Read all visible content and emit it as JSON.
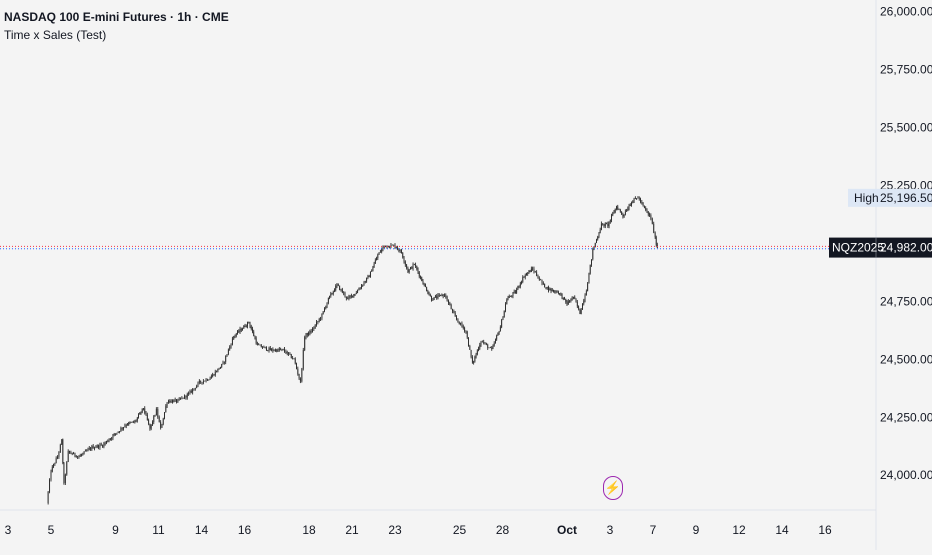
{
  "header": {
    "title": "NASDAQ 100 E-mini Futures · 1h · CME",
    "indicator": "Time x Sales (Test)"
  },
  "colors": {
    "background": "#f4f4f4",
    "candle": "#2b2b2b",
    "price_line_red": "#f23645",
    "price_line_blue": "#2962ff",
    "high_label_bg": "#dde7f5",
    "symbol_label_bg": "#131722",
    "axis_text": "#131722",
    "flash_icon": "#9c27b0"
  },
  "price_tag": {
    "symbol": "NQZ2025",
    "price": "24,982.00"
  },
  "high_tag": {
    "label": "High",
    "price": "25,196.50"
  },
  "icons": {
    "flash": "lightning-bolt-icon"
  },
  "chart_data": {
    "type": "candlestick",
    "title": "NASDAQ 100 E-mini Futures · 1h · CME",
    "ylim": [
      23850,
      26050
    ],
    "yticks": [
      24000,
      24250,
      24500,
      24750,
      25000,
      25250,
      25500,
      25750,
      26000
    ],
    "ytick_labels": [
      "24,000.00",
      "24,250.00",
      "24,500.00",
      "24,750.00",
      "25,000.00",
      "25,250.00",
      "25,500.00",
      "25,750.00",
      "26,000.00"
    ],
    "xticks": [
      {
        "label": "3",
        "day": 0,
        "bold": false
      },
      {
        "label": "5",
        "day": 2,
        "bold": false
      },
      {
        "label": "9",
        "day": 5,
        "bold": false
      },
      {
        "label": "11",
        "day": 7,
        "bold": false
      },
      {
        "label": "14",
        "day": 9,
        "bold": false
      },
      {
        "label": "16",
        "day": 11,
        "bold": false
      },
      {
        "label": "18",
        "day": 14,
        "bold": false
      },
      {
        "label": "21",
        "day": 16,
        "bold": false
      },
      {
        "label": "23",
        "day": 18,
        "bold": false
      },
      {
        "label": "25",
        "day": 21,
        "bold": false
      },
      {
        "label": "28",
        "day": 23,
        "bold": false
      },
      {
        "label": "Oct",
        "day": 26,
        "bold": true
      },
      {
        "label": "3",
        "day": 28,
        "bold": false
      },
      {
        "label": "7",
        "day": 30,
        "bold": false
      },
      {
        "label": "9",
        "day": 32,
        "bold": false
      },
      {
        "label": "12",
        "day": 34,
        "bold": false
      },
      {
        "label": "14",
        "day": 36,
        "bold": false
      },
      {
        "label": "16",
        "day": 38,
        "bold": false
      }
    ],
    "last_price": 24982,
    "session_high": 25196.5,
    "price_path": [
      [
        1.8,
        23880
      ],
      [
        2.0,
        24020
      ],
      [
        2.3,
        24080
      ],
      [
        2.5,
        24150
      ],
      [
        2.6,
        23960
      ],
      [
        2.8,
        24100
      ],
      [
        3.3,
        24080
      ],
      [
        3.9,
        24120
      ],
      [
        4.4,
        24130
      ],
      [
        5.0,
        24180
      ],
      [
        5.5,
        24220
      ],
      [
        5.9,
        24230
      ],
      [
        6.3,
        24290
      ],
      [
        6.6,
        24200
      ],
      [
        6.9,
        24280
      ],
      [
        7.1,
        24200
      ],
      [
        7.4,
        24320
      ],
      [
        7.9,
        24320
      ],
      [
        8.4,
        24350
      ],
      [
        8.9,
        24400
      ],
      [
        9.4,
        24420
      ],
      [
        10.0,
        24480
      ],
      [
        10.5,
        24600
      ],
      [
        11.2,
        24660
      ],
      [
        11.6,
        24560
      ],
      [
        12.2,
        24540
      ],
      [
        12.8,
        24540
      ],
      [
        13.3,
        24500
      ],
      [
        13.6,
        24400
      ],
      [
        13.8,
        24600
      ],
      [
        14.1,
        24620
      ],
      [
        14.6,
        24690
      ],
      [
        14.9,
        24760
      ],
      [
        15.3,
        24820
      ],
      [
        15.8,
        24760
      ],
      [
        16.2,
        24790
      ],
      [
        16.8,
        24860
      ],
      [
        17.2,
        24950
      ],
      [
        17.5,
        24990
      ],
      [
        18.0,
        24990
      ],
      [
        18.3,
        24960
      ],
      [
        18.6,
        24880
      ],
      [
        18.9,
        24910
      ],
      [
        19.3,
        24830
      ],
      [
        19.7,
        24760
      ],
      [
        20.3,
        24780
      ],
      [
        20.8,
        24680
      ],
      [
        21.3,
        24620
      ],
      [
        21.6,
        24480
      ],
      [
        22.0,
        24580
      ],
      [
        22.5,
        24540
      ],
      [
        22.9,
        24640
      ],
      [
        23.2,
        24760
      ],
      [
        23.6,
        24790
      ],
      [
        24.0,
        24860
      ],
      [
        24.4,
        24890
      ],
      [
        24.9,
        24820
      ],
      [
        25.2,
        24800
      ],
      [
        25.6,
        24790
      ],
      [
        26.0,
        24740
      ],
      [
        26.3,
        24770
      ],
      [
        26.6,
        24700
      ],
      [
        26.9,
        24800
      ],
      [
        27.2,
        24970
      ],
      [
        27.6,
        25080
      ],
      [
        27.9,
        25080
      ],
      [
        28.3,
        25160
      ],
      [
        28.6,
        25120
      ],
      [
        29.0,
        25180
      ],
      [
        29.3,
        25200
      ],
      [
        29.6,
        25150
      ],
      [
        29.9,
        25110
      ],
      [
        30.1,
        25020
      ],
      [
        30.2,
        24982
      ]
    ]
  }
}
